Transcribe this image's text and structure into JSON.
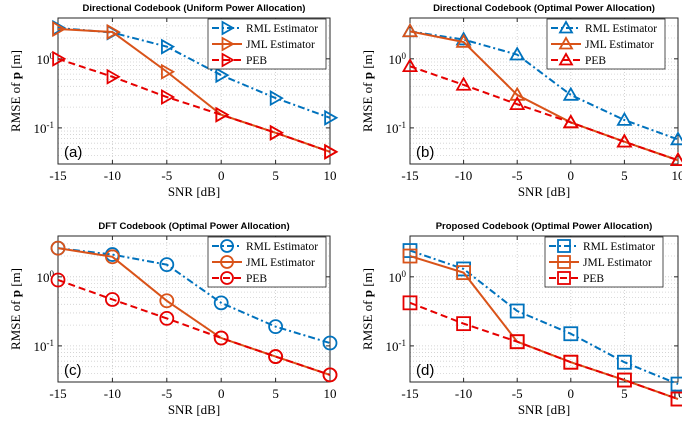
{
  "chart_data": [
    {
      "type": "line",
      "title": "Directional Codebook (Uniform Power Allocation)",
      "panel_label": "(a)",
      "xlabel": "SNR [dB]",
      "ylabel": "RMSE of p [m]",
      "yscale": "log",
      "grid": true,
      "legend_position": "top-right",
      "x": [
        -15,
        -10,
        -5,
        0,
        5,
        10
      ],
      "xticks": [
        "-15",
        "-10",
        "-5",
        "0",
        "5",
        "10"
      ],
      "yticks": [
        "10^0",
        "10^-1"
      ],
      "series": [
        {
          "name": "RML Estimator",
          "color": "#0072BD",
          "dash": "dash-dot",
          "marker": "triangle-right",
          "values": [
            2.8,
            2.4,
            1.5,
            0.58,
            0.27,
            0.14
          ]
        },
        {
          "name": "JML Estimator",
          "color": "#D95319",
          "dash": "solid",
          "marker": "triangle-right",
          "values": [
            2.7,
            2.45,
            0.65,
            0.155,
            0.085,
            0.045
          ]
        },
        {
          "name": "PEB",
          "color": "#E60000",
          "dash": "dashed",
          "marker": "triangle-right",
          "values": [
            1.0,
            0.55,
            0.28,
            0.155,
            0.085,
            0.045
          ]
        }
      ]
    },
    {
      "type": "line",
      "title": "Directional Codebook (Optimal Power Allocation)",
      "panel_label": "(b)",
      "xlabel": "SNR [dB]",
      "ylabel": "RMSE of p [m]",
      "yscale": "log",
      "grid": true,
      "legend_position": "top-right",
      "x": [
        -15,
        -10,
        -5,
        0,
        5,
        10
      ],
      "xticks": [
        "-15",
        "-10",
        "-5",
        "0",
        "5",
        "10"
      ],
      "yticks": [
        "10^0",
        "10^-1"
      ],
      "series": [
        {
          "name": "RML Estimator",
          "color": "#0072BD",
          "dash": "dash-dot",
          "marker": "triangle-up",
          "values": [
            2.5,
            1.9,
            1.15,
            0.3,
            0.13,
            0.068
          ]
        },
        {
          "name": "JML Estimator",
          "color": "#D95319",
          "dash": "solid",
          "marker": "triangle-up",
          "values": [
            2.5,
            1.75,
            0.3,
            0.12,
            0.063,
            0.034
          ]
        },
        {
          "name": "PEB",
          "color": "#E60000",
          "dash": "dashed",
          "marker": "triangle-up",
          "values": [
            0.78,
            0.42,
            0.22,
            0.12,
            0.063,
            0.034
          ]
        }
      ]
    },
    {
      "type": "line",
      "title": "DFT Codebook (Optimal Power Allocation)",
      "panel_label": "(c)",
      "xlabel": "SNR [dB]",
      "ylabel": "RMSE of p [m]",
      "yscale": "log",
      "grid": true,
      "legend_position": "top-right",
      "x": [
        -15,
        -10,
        -5,
        0,
        5,
        10
      ],
      "xticks": [
        "-15",
        "-10",
        "-5",
        "0",
        "5",
        "10"
      ],
      "yticks": [
        "10^0",
        "10^-1"
      ],
      "series": [
        {
          "name": "RML Estimator",
          "color": "#0072BD",
          "dash": "dash-dot",
          "marker": "circle",
          "values": [
            2.6,
            2.1,
            1.5,
            0.42,
            0.19,
            0.11
          ]
        },
        {
          "name": "JML Estimator",
          "color": "#D95319",
          "dash": "solid",
          "marker": "circle",
          "values": [
            2.6,
            1.95,
            0.45,
            0.13,
            0.07,
            0.038
          ]
        },
        {
          "name": "PEB",
          "color": "#E60000",
          "dash": "dashed",
          "marker": "circle",
          "values": [
            0.9,
            0.47,
            0.25,
            0.13,
            0.07,
            0.038
          ]
        }
      ]
    },
    {
      "type": "line",
      "title": "Proposed Codebook (Optimal Power Allocation)",
      "panel_label": "(d)",
      "xlabel": "SNR [dB]",
      "ylabel": "RMSE of p [m]",
      "yscale": "log",
      "grid": true,
      "legend_position": "top-right",
      "x": [
        -15,
        -10,
        -5,
        0,
        5,
        10
      ],
      "xticks": [
        "-15",
        "-10",
        "-5",
        "0",
        "5",
        "10"
      ],
      "yticks": [
        "10^0",
        "10^-1"
      ],
      "series": [
        {
          "name": "RML Estimator",
          "color": "#0072BD",
          "dash": "dash-dot",
          "marker": "square",
          "values": [
            2.4,
            1.3,
            0.32,
            0.15,
            0.058,
            0.028
          ]
        },
        {
          "name": "JML Estimator",
          "color": "#D95319",
          "dash": "solid",
          "marker": "square",
          "values": [
            2.0,
            1.15,
            0.115,
            0.058,
            0.032,
            0.017
          ]
        },
        {
          "name": "PEB",
          "color": "#E60000",
          "dash": "dashed",
          "marker": "square",
          "values": [
            0.42,
            0.21,
            0.115,
            0.058,
            0.032,
            0.017
          ]
        }
      ]
    }
  ]
}
